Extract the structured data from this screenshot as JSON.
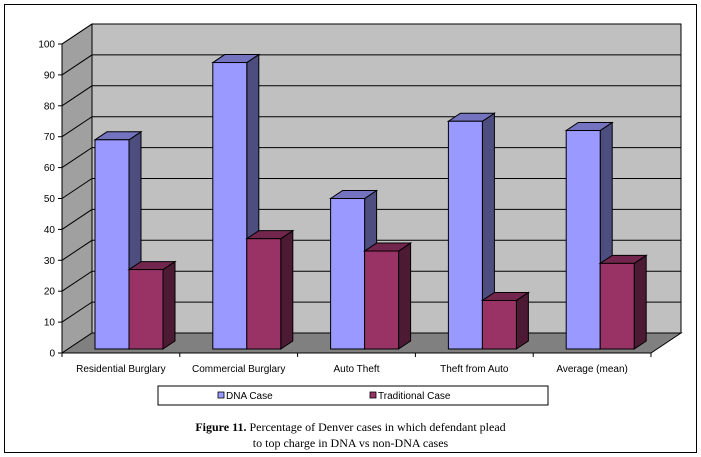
{
  "chart_data": {
    "type": "bar",
    "title": "",
    "xlabel": "",
    "ylabel": "",
    "ylim": [
      0,
      100
    ],
    "yticks": [
      0,
      10,
      20,
      30,
      40,
      50,
      60,
      70,
      80,
      90,
      100
    ],
    "categories": [
      "Residential Burglary",
      "Commercial Burglary",
      "Auto Theft",
      "Theft from Auto",
      "Average (mean)"
    ],
    "series": [
      {
        "name": "DNA Case",
        "values": [
          69,
          94,
          50,
          75,
          72
        ],
        "color": "#9999ff"
      },
      {
        "name": "Traditional Case",
        "values": [
          27,
          37,
          33,
          17,
          29
        ],
        "color": "#993366"
      }
    ],
    "grid": true,
    "legend_placement": "bottom",
    "style": "3d-clustered-column",
    "wall_color": "#c0c0c0",
    "floor_color": "#808080"
  },
  "caption": {
    "label": "Figure 11.",
    "text_line1": " Percentage of Denver cases in which defendant plead",
    "text_line2": "to top charge in DNA vs non-DNA cases"
  }
}
